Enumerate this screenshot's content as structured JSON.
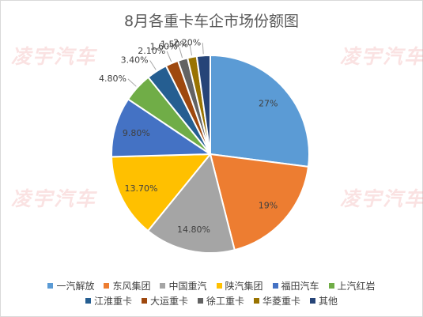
{
  "chart_data": {
    "type": "pie",
    "title": "8月各重卡车企市场份额图",
    "slices": [
      {
        "name": "一汽解放",
        "value": 27,
        "label": "27%",
        "color": "#5b9bd5"
      },
      {
        "name": "东风集团",
        "value": 19,
        "label": "19%",
        "color": "#ed7d31"
      },
      {
        "name": "中国重汽",
        "value": 14.8,
        "label": "14.80%",
        "color": "#a5a5a5"
      },
      {
        "name": "陕汽集团",
        "value": 13.7,
        "label": "13.70%",
        "color": "#ffc000"
      },
      {
        "name": "福田汽车",
        "value": 9.8,
        "label": "9.80%",
        "color": "#4472c4"
      },
      {
        "name": "上汽红岩",
        "value": 4.8,
        "label": "4.80%",
        "color": "#70ad47"
      },
      {
        "name": "江淮重卡",
        "value": 3.4,
        "label": "3.40%",
        "color": "#255e91"
      },
      {
        "name": "大运重卡",
        "value": 2.1,
        "label": "2.10%",
        "color": "#9e480e"
      },
      {
        "name": "徐工重卡",
        "value": 1.6,
        "label": "1.60%",
        "color": "#636363"
      },
      {
        "name": "华菱重卡",
        "value": 1.5,
        "label": "1.50%",
        "color": "#997300"
      },
      {
        "name": "其他",
        "value": 2.2,
        "label": "2.20%",
        "color": "#264478"
      }
    ],
    "legend_position": "bottom"
  },
  "watermark": "凌宇汽车"
}
